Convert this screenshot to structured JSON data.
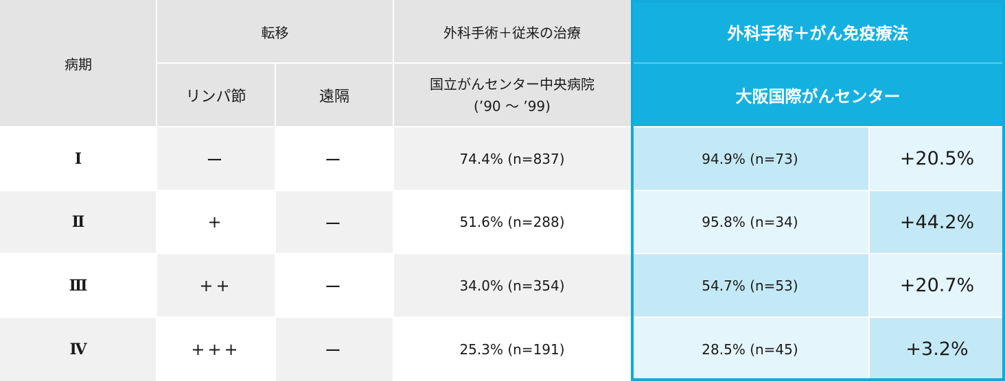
{
  "headers": {
    "stage": "病期",
    "metastasis": "転移",
    "lymph": "リンパ節",
    "distant": "遠隔",
    "conventional": "外科手術＋従来の治療",
    "conventional_source_line1": "国立がんセンター中央病院",
    "conventional_source_line2": "(’90 ～ ’99)",
    "immuno": "外科手術＋がん免疫療法",
    "immuno_source": "大阪国際がんセンター"
  },
  "rows": [
    {
      "stage": "Ⅰ",
      "lymph": "ー",
      "distant": "ー",
      "conventional": "74.4% (n=837)",
      "immuno": "94.9% (n=73)",
      "diff": "+20.5%"
    },
    {
      "stage": "Ⅱ",
      "lymph": "+",
      "distant": "ー",
      "conventional": "51.6% (n=288)",
      "immuno": "95.8% (n=34)",
      "diff": "+44.2%"
    },
    {
      "stage": "Ⅲ",
      "lymph": "++",
      "distant": "ー",
      "conventional": "34.0% (n=354)",
      "immuno": "54.7% (n=53)",
      "diff": "+20.7%"
    },
    {
      "stage": "Ⅳ",
      "lymph": "+++",
      "distant": "ー",
      "conventional": "25.3% (n=191)",
      "immuno": "28.5% (n=45)",
      "diff": "+3.2%"
    }
  ],
  "colors": {
    "header_gray": "#e4e4e4",
    "header_blue": "#14b1e0",
    "row_gray": "#f1f1f1",
    "row_blue_strong": "#c4e9f6",
    "row_blue_light": "#e4f5fc"
  }
}
